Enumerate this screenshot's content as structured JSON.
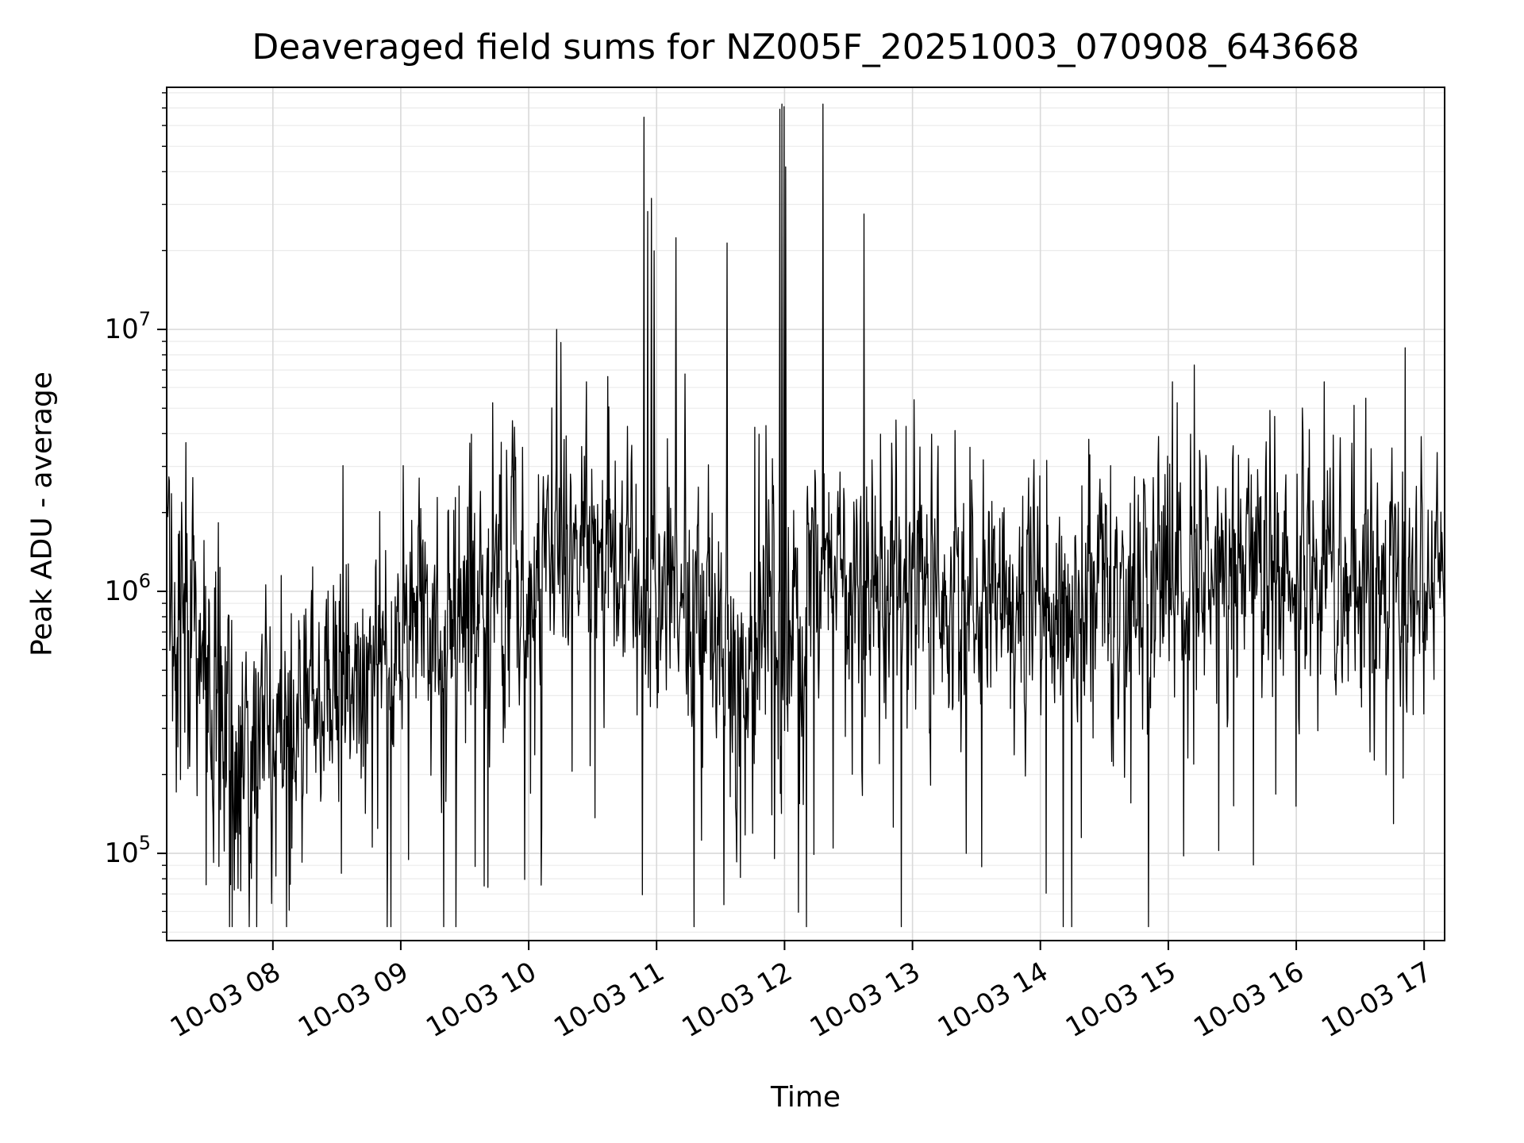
{
  "chart_data": {
    "type": "line",
    "title": "Deaveraged field sums for NZ005F_20251003_070908_643668",
    "xlabel": "Time",
    "ylabel": "Peak ADU - average",
    "yscale": "log",
    "line_color": "#000000",
    "background": "#ffffff",
    "grid": {
      "major": "#d9d9d9",
      "minor": "#ebebeb",
      "on": true
    },
    "legend": "none",
    "x_domain_hours": [
      7.17,
      17.16
    ],
    "ylim_log": [
      4.667,
      7.924
    ],
    "xtick_hours": [
      8,
      9,
      10,
      11,
      12,
      13,
      14,
      15,
      16,
      17
    ],
    "xtick_labels": [
      "10-03 08",
      "10-03 09",
      "10-03 10",
      "10-03 11",
      "10-03 12",
      "10-03 13",
      "10-03 14",
      "10-03 15",
      "10-03 16",
      "10-03 17"
    ],
    "ytick_labels": [
      {
        "log": 5,
        "mantissa": "10",
        "exponent": "5"
      },
      {
        "log": 6,
        "mantissa": "10",
        "exponent": "6"
      },
      {
        "log": 7,
        "mantissa": "10",
        "exponent": "7"
      }
    ],
    "series_spec": {
      "description": "Noisy log-scale time series; envelope entries are [hour, median_log10, sigma_log10]; spikes/dips are [hour, log10_value] outliers read from the plot",
      "n_points": 2400,
      "seed": 20251003,
      "envelope": [
        [
          7.17,
          5.88,
          0.26
        ],
        [
          7.35,
          5.75,
          0.3
        ],
        [
          7.55,
          5.55,
          0.34
        ],
        [
          7.75,
          5.45,
          0.34
        ],
        [
          7.95,
          5.55,
          0.3
        ],
        [
          8.2,
          5.55,
          0.28
        ],
        [
          8.5,
          5.6,
          0.27
        ],
        [
          8.8,
          5.7,
          0.26
        ],
        [
          9.0,
          5.85,
          0.24
        ],
        [
          9.25,
          5.88,
          0.26
        ],
        [
          9.5,
          5.95,
          0.28
        ],
        [
          9.75,
          6.02,
          0.26
        ],
        [
          10.0,
          6.05,
          0.26
        ],
        [
          10.3,
          6.1,
          0.22
        ],
        [
          10.6,
          6.13,
          0.22
        ],
        [
          10.85,
          6.1,
          0.24
        ],
        [
          11.05,
          5.95,
          0.26
        ],
        [
          11.3,
          5.85,
          0.28
        ],
        [
          11.6,
          5.78,
          0.31
        ],
        [
          11.85,
          5.8,
          0.32
        ],
        [
          12.05,
          5.95,
          0.28
        ],
        [
          12.3,
          6.05,
          0.24
        ],
        [
          12.6,
          6.05,
          0.25
        ],
        [
          12.9,
          6.0,
          0.26
        ],
        [
          13.2,
          5.98,
          0.27
        ],
        [
          13.5,
          5.98,
          0.27
        ],
        [
          13.8,
          6.0,
          0.26
        ],
        [
          14.1,
          6.0,
          0.26
        ],
        [
          14.4,
          6.0,
          0.27
        ],
        [
          14.7,
          6.02,
          0.26
        ],
        [
          15.0,
          6.05,
          0.27
        ],
        [
          15.3,
          6.08,
          0.26
        ],
        [
          15.6,
          6.1,
          0.25
        ],
        [
          15.9,
          6.08,
          0.26
        ],
        [
          16.2,
          6.1,
          0.26
        ],
        [
          16.5,
          6.05,
          0.27
        ],
        [
          16.8,
          6.0,
          0.26
        ],
        [
          17.0,
          6.05,
          0.24
        ],
        [
          17.16,
          6.2,
          0.2
        ]
      ],
      "spikes": [
        [
          8.55,
          6.48
        ],
        [
          9.02,
          6.48
        ],
        [
          9.55,
          6.6
        ],
        [
          9.58,
          6.55
        ],
        [
          9.72,
          6.72
        ],
        [
          9.95,
          6.55
        ],
        [
          10.22,
          7.0
        ],
        [
          10.25,
          6.95
        ],
        [
          10.45,
          6.8
        ],
        [
          10.62,
          6.82
        ],
        [
          10.9,
          7.81
        ],
        [
          10.93,
          7.45
        ],
        [
          10.96,
          7.5
        ],
        [
          10.98,
          7.3
        ],
        [
          11.15,
          7.35
        ],
        [
          11.22,
          6.83
        ],
        [
          11.55,
          7.33
        ],
        [
          11.8,
          6.6
        ],
        [
          11.965,
          7.84
        ],
        [
          11.98,
          7.86
        ],
        [
          11.995,
          7.85
        ],
        [
          12.01,
          7.62
        ],
        [
          12.3,
          7.86
        ],
        [
          12.62,
          7.44
        ],
        [
          12.75,
          6.6
        ],
        [
          12.95,
          6.63
        ],
        [
          13.15,
          6.6
        ],
        [
          13.45,
          6.55
        ],
        [
          14.05,
          6.5
        ],
        [
          14.55,
          6.48
        ],
        [
          15.03,
          6.8
        ],
        [
          15.07,
          6.72
        ],
        [
          15.25,
          6.5
        ],
        [
          15.55,
          6.52
        ],
        [
          16.05,
          6.7
        ],
        [
          16.22,
          6.8
        ],
        [
          16.45,
          6.71
        ],
        [
          16.85,
          6.93
        ],
        [
          17.1,
          6.53
        ]
      ],
      "dips": [
        [
          7.48,
          4.88
        ],
        [
          7.58,
          4.95
        ],
        [
          7.7,
          4.86
        ],
        [
          8.15,
          5.02
        ],
        [
          8.9,
          5.1
        ],
        [
          9.58,
          4.95
        ],
        [
          9.68,
          4.87
        ],
        [
          10.1,
          5.1
        ],
        [
          11.35,
          5.05
        ],
        [
          11.92,
          4.98
        ],
        [
          12.38,
          5.02
        ],
        [
          12.85,
          5.1
        ],
        [
          13.42,
          5.0
        ],
        [
          14.32,
          5.06
        ],
        [
          15.12,
          4.99
        ],
        [
          16.0,
          5.18
        ],
        [
          16.7,
          5.3
        ]
      ]
    }
  }
}
